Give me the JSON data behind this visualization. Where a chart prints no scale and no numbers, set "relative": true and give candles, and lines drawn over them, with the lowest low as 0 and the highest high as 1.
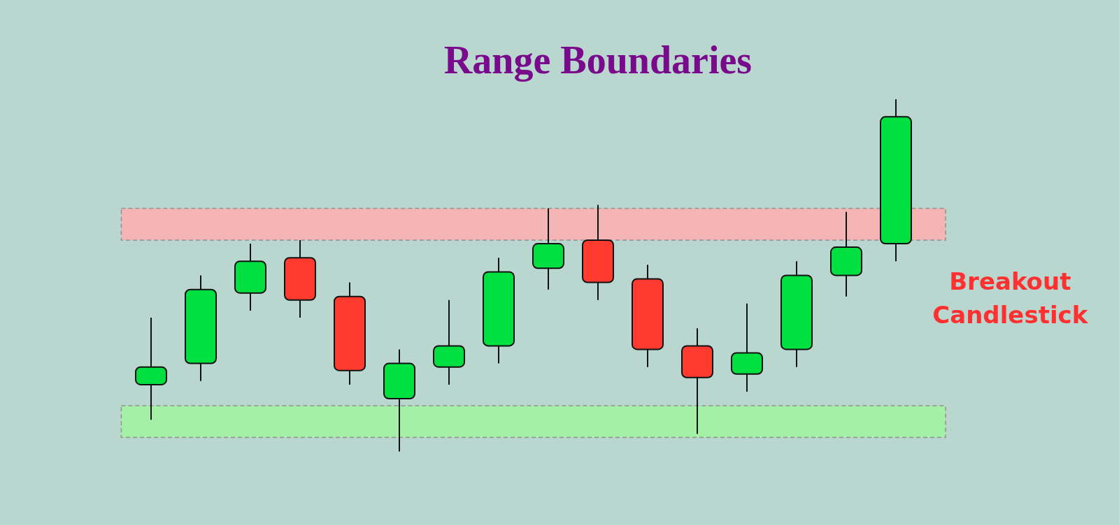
{
  "chart_data": {
    "type": "candlestick",
    "title": "Range Boundaries",
    "relative": true,
    "categories": [
      null,
      null,
      null,
      null,
      null,
      null,
      null,
      null,
      null,
      null,
      null,
      null,
      null,
      null,
      null,
      null
    ],
    "ohlc": [
      [
        0.19,
        0.38,
        0.09,
        0.24
      ],
      [
        0.25,
        0.5,
        0.2,
        0.46
      ],
      [
        0.45,
        0.59,
        0.4,
        0.54
      ],
      [
        0.55,
        0.6,
        0.38,
        0.43
      ],
      [
        0.44,
        0.48,
        0.19,
        0.23
      ],
      [
        0.15,
        0.29,
        0,
        0.25
      ],
      [
        0.24,
        0.43,
        0.19,
        0.3
      ],
      [
        0.3,
        0.55,
        0.25,
        0.51
      ],
      [
        0.52,
        0.69,
        0.46,
        0.59
      ],
      [
        0.6,
        0.7,
        0.43,
        0.48
      ],
      [
        0.49,
        0.53,
        0.24,
        0.29
      ],
      [
        0.3,
        0.35,
        0.05,
        0.21
      ],
      [
        0.22,
        0.42,
        0.17,
        0.28
      ],
      [
        0.29,
        0.54,
        0.24,
        0.5
      ],
      [
        0.5,
        0.68,
        0.44,
        0.58
      ],
      [
        0.59,
        1,
        0.54,
        0.95
      ]
    ],
    "colors": [
      "#00e040",
      "#00e040",
      "#00e040",
      "#ff3b30",
      "#ff3b30",
      "#00e040",
      "#00e040",
      "#00e040",
      "#00e040",
      "#ff3b30",
      "#ff3b30",
      "#ff3b30",
      "#00e040",
      "#00e040",
      "#00e040",
      "#00e040"
    ],
    "bands": [
      {
        "axis": "y",
        "from": 0.6,
        "to": 0.69,
        "color": "#ffb0b0"
      },
      {
        "axis": "y",
        "from": 0.04,
        "to": 0.13,
        "color": "#a0f5a0"
      }
    ],
    "annotations": [
      "Breakout Candlestick"
    ],
    "tick_labels": false
  }
}
